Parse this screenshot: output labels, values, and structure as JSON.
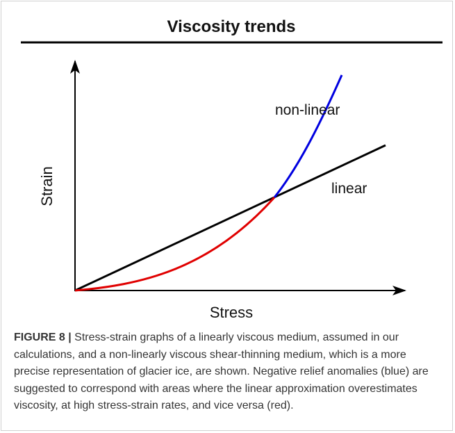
{
  "figure": {
    "title": "Viscosity trends",
    "y_axis_label": "Strain",
    "x_axis_label": "Stress",
    "curve_labels": [
      "non-linear",
      "linear"
    ]
  },
  "caption": {
    "label": "FIGURE 8 |",
    "text": "Stress-strain graphs of a linearly viscous medium, assumed in our calculations, and a non-linearly viscous shear-thinning medium, which is a more precise representation of glacier ice, are shown. Negative relief anomalies (blue) are suggested to correspond with areas where the linear approximation overestimates viscosity, at high stress-strain rates, and vice versa (red)."
  }
}
